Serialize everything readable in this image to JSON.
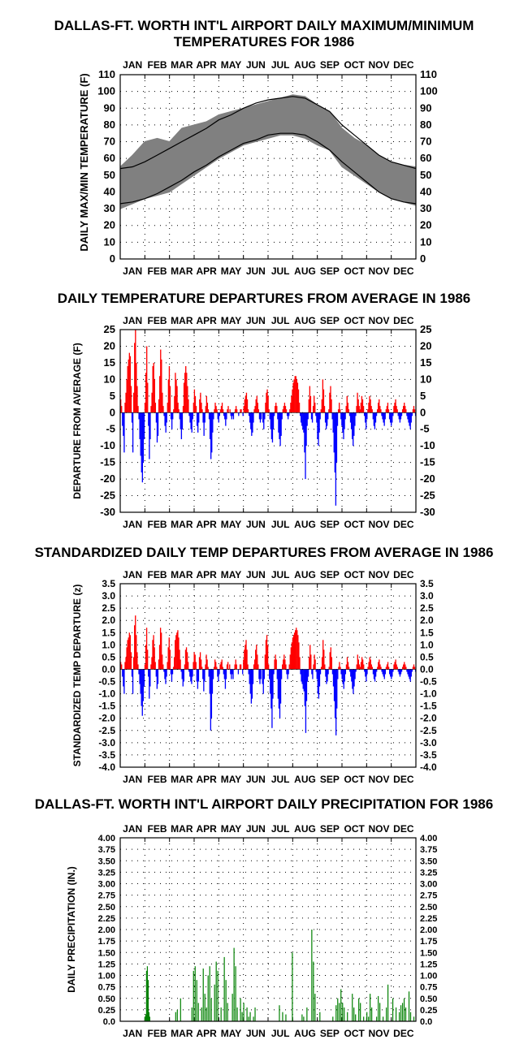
{
  "months": [
    "JAN",
    "FEB",
    "MAR",
    "APR",
    "MAY",
    "JUN",
    "JUL",
    "AUG",
    "SEP",
    "OCT",
    "NOV",
    "DEC"
  ],
  "colors": {
    "positive": "#ff0000",
    "negative": "#0000ff",
    "range": "#808080",
    "precip": "#008000",
    "normal_line": "#000000"
  },
  "chart_data": [
    {
      "type": "area",
      "title_lines": [
        "DALLAS-FT. WORTH INT'L AIRPORT DAILY MAXIMUM/MINIMUM",
        "TEMPERATURES FOR 1986"
      ],
      "ylabel": "DAILY MAX/MIN TEMPERATURE (F)",
      "ylim": [
        0,
        110
      ],
      "yticks": [
        "0",
        "10",
        "20",
        "30",
        "40",
        "50",
        "60",
        "70",
        "80",
        "90",
        "100",
        "110"
      ],
      "xlabel": "",
      "legend": "none",
      "grid": true,
      "x": [
        "Jan 1",
        "Jan 15",
        "Feb 1",
        "Feb 15",
        "Mar 1",
        "Mar 15",
        "Apr 1",
        "Apr 15",
        "May 1",
        "May 15",
        "Jun 1",
        "Jun 15",
        "Jul 1",
        "Jul 15",
        "Aug 1",
        "Aug 15",
        "Sep 1",
        "Sep 15",
        "Oct 1",
        "Oct 15",
        "Nov 1",
        "Nov 15",
        "Dec 1",
        "Dec 15",
        "Dec 31"
      ],
      "series": [
        {
          "role": "daily_max",
          "values": [
            55,
            62,
            70,
            72,
            70,
            78,
            80,
            82,
            86,
            88,
            90,
            92,
            94,
            96,
            98,
            97,
            92,
            88,
            78,
            72,
            68,
            62,
            58,
            56,
            55
          ]
        },
        {
          "role": "daily_min",
          "values": [
            30,
            33,
            36,
            38,
            40,
            45,
            50,
            55,
            60,
            64,
            68,
            70,
            72,
            74,
            74,
            72,
            68,
            65,
            55,
            50,
            45,
            40,
            36,
            34,
            32
          ]
        },
        {
          "role": "normal_high",
          "values": [
            54,
            55,
            58,
            62,
            66,
            70,
            74,
            78,
            83,
            86,
            90,
            93,
            95,
            96,
            97,
            96,
            92,
            88,
            80,
            74,
            68,
            62,
            58,
            56,
            54
          ]
        },
        {
          "role": "normal_low",
          "values": [
            33,
            34,
            36,
            39,
            43,
            47,
            52,
            56,
            61,
            65,
            69,
            71,
            74,
            75,
            75,
            74,
            70,
            65,
            58,
            52,
            46,
            40,
            36,
            34,
            33
          ]
        }
      ]
    },
    {
      "type": "bar",
      "title": "DAILY TEMPERATURE DEPARTURES FROM AVERAGE IN 1986",
      "ylabel": "DEPARTURE FROM AVERAGE (F)",
      "ylim": [
        -30,
        25
      ],
      "yticks": [
        "25",
        "20",
        "15",
        "10",
        "5",
        "0",
        "-5",
        "-10",
        "-15",
        "-20",
        "-25",
        "-30"
      ],
      "xlabel": "",
      "legend": "none",
      "grid": true,
      "values": [
        4,
        2,
        -4,
        -7,
        -12,
        3,
        6,
        10,
        14,
        16,
        18,
        17,
        8,
        -3,
        -12,
        6,
        21,
        25,
        15,
        8,
        2,
        -2,
        -8,
        -13,
        -18,
        -21,
        -15,
        -8,
        3,
        12,
        20,
        9,
        -4,
        -14,
        -8,
        2,
        6,
        14,
        15,
        10,
        3,
        -3,
        -9,
        -7,
        4,
        11,
        19,
        16,
        6,
        2,
        -1,
        -4,
        -6,
        -3,
        3,
        10,
        14,
        8,
        -2,
        -5,
        -2,
        1,
        5,
        12,
        10,
        8,
        3,
        1,
        -2,
        -5,
        -8,
        -5,
        2,
        9,
        12,
        14,
        12,
        8,
        4,
        -1,
        -3,
        -5,
        -6,
        -2,
        3,
        7,
        5,
        2,
        -4,
        -6,
        -3,
        4,
        6,
        3,
        1,
        -3,
        -7,
        -3,
        2,
        5,
        3,
        1,
        -2,
        -8,
        -14,
        -12,
        -6,
        -2,
        1,
        3,
        2,
        1,
        -2,
        -3,
        -1,
        1,
        2,
        3,
        1,
        -1,
        -2,
        -4,
        -2,
        1,
        2,
        0,
        1,
        -1,
        -2,
        -1,
        -2,
        0,
        1,
        2,
        1,
        0,
        -1,
        0,
        1,
        1,
        0,
        -1,
        2,
        4,
        5,
        6,
        4,
        1,
        -1,
        -3,
        -5,
        -7,
        -6,
        -3,
        1,
        2,
        4,
        5,
        3,
        1,
        -2,
        -3,
        -2,
        0,
        -3,
        -5,
        -2,
        3,
        6,
        7,
        5,
        1,
        -2,
        -5,
        -8,
        -9,
        -5,
        -1,
        2,
        3,
        2,
        -2,
        -6,
        -8,
        -10,
        -7,
        -2,
        1,
        2,
        3,
        2,
        1,
        -1,
        -2,
        -1,
        1,
        3,
        5,
        7,
        9,
        10,
        11,
        11,
        10,
        9,
        7,
        3,
        -1,
        -3,
        -4,
        -5,
        -6,
        -12,
        -20,
        -10,
        -4,
        -2,
        4,
        8,
        5,
        -2,
        -3,
        2,
        5,
        3,
        -1,
        -3,
        -8,
        -10,
        -6,
        -2,
        1,
        4,
        10,
        7,
        2,
        -3,
        -5,
        -4,
        -2,
        1,
        6,
        8,
        4,
        -2,
        -6,
        -12,
        -18,
        -28,
        -15,
        -4,
        1,
        3,
        1,
        -2,
        -4,
        -6,
        -8,
        -5,
        -2,
        2,
        5,
        3,
        1,
        -1,
        -3,
        -5,
        -8,
        -10,
        -7,
        -4,
        -1,
        2,
        6,
        4,
        2,
        1,
        3,
        5,
        4,
        2,
        -1,
        -3,
        -5,
        -2,
        1,
        3,
        5,
        4,
        2,
        1,
        -2,
        -4,
        -5,
        -3,
        -1,
        1,
        3,
        4,
        2,
        1,
        -1,
        -2,
        -3,
        -4,
        -2,
        1,
        2,
        3,
        1,
        -2,
        -3,
        -4,
        -3,
        -1,
        2,
        3,
        4,
        2,
        1,
        -1,
        -2,
        -3,
        -2,
        -1,
        1,
        2,
        3,
        2,
        1,
        -1,
        -2,
        -3,
        -4,
        -5,
        -3,
        -1,
        1,
        2,
        1,
        -1
      ]
    },
    {
      "type": "bar",
      "title": "STANDARDIZED DAILY TEMP DEPARTURES FROM AVERAGE IN 1986",
      "ylabel": "STANDARDIZED TEMP DEPARTURE (z)",
      "ylim": [
        -4.0,
        3.5
      ],
      "yticks": [
        "3.5",
        "3.0",
        "2.5",
        "2.0",
        "1.5",
        "1.0",
        "0.5",
        "0.0",
        "-0.5",
        "-1.0",
        "-1.5",
        "-2.0",
        "-2.5",
        "-3.0",
        "-3.5",
        "-4.0"
      ],
      "xlabel": "",
      "legend": "none",
      "grid": true,
      "values": [
        0.3,
        0.2,
        -0.3,
        -0.7,
        -1.0,
        0.3,
        0.5,
        0.9,
        1.2,
        1.3,
        1.5,
        1.4,
        0.7,
        -0.3,
        -1.0,
        0.5,
        1.8,
        2.2,
        1.4,
        0.7,
        0.2,
        -0.2,
        -0.6,
        -1.0,
        -1.5,
        -1.9,
        -1.3,
        -0.7,
        0.2,
        1.0,
        1.7,
        0.8,
        -0.3,
        -1.2,
        -0.7,
        0.2,
        0.5,
        1.2,
        1.4,
        0.9,
        0.3,
        -0.3,
        -0.8,
        -0.6,
        0.4,
        1.0,
        1.7,
        1.5,
        0.6,
        0.2,
        -0.1,
        -0.4,
        -0.6,
        -0.3,
        0.3,
        0.9,
        1.3,
        0.8,
        -0.2,
        -0.5,
        -0.2,
        0.1,
        0.5,
        1.2,
        1.4,
        1.5,
        1.6,
        1.3,
        0.8,
        0.4,
        -0.1,
        -0.4,
        -0.7,
        -0.5,
        0.2,
        0.8,
        0.9,
        0.7,
        0.3,
        -0.1,
        -0.3,
        -0.5,
        -0.6,
        -0.3,
        0.3,
        0.7,
        0.6,
        0.3,
        -0.5,
        -0.8,
        -0.5,
        0.5,
        0.7,
        0.4,
        0.1,
        -0.4,
        -0.9,
        -0.5,
        0.2,
        0.6,
        0.4,
        0.1,
        -0.3,
        -1.0,
        -2.5,
        -2.0,
        -1.0,
        -0.4,
        0.1,
        0.4,
        0.3,
        0.1,
        -0.3,
        -0.5,
        -0.2,
        0.2,
        0.3,
        0.4,
        0.1,
        -0.2,
        -0.4,
        -0.8,
        -0.4,
        0.2,
        0.3,
        0.0,
        0.2,
        -0.2,
        -0.4,
        -0.2,
        -0.4,
        0.0,
        0.2,
        0.4,
        0.2,
        0.0,
        -0.2,
        0.0,
        0.2,
        0.2,
        0.0,
        -0.2,
        0.4,
        0.8,
        1.0,
        1.2,
        0.8,
        0.2,
        -0.2,
        -0.6,
        -1.0,
        -1.4,
        -1.2,
        -0.6,
        0.2,
        0.4,
        0.8,
        1.0,
        0.6,
        0.2,
        -0.4,
        -0.6,
        -0.4,
        0.0,
        -0.6,
        -1.0,
        -0.4,
        0.6,
        1.2,
        1.4,
        1.0,
        0.2,
        -0.4,
        -1.0,
        -1.6,
        -2.4,
        -1.2,
        -0.2,
        0.4,
        0.6,
        0.4,
        -0.4,
        -1.2,
        -1.6,
        -2.0,
        -1.4,
        -0.4,
        0.2,
        0.4,
        0.6,
        0.4,
        0.2,
        -0.2,
        -0.4,
        -0.2,
        0.2,
        0.6,
        0.9,
        1.1,
        1.3,
        1.4,
        1.5,
        1.6,
        1.7,
        1.6,
        1.4,
        1.1,
        0.5,
        -0.2,
        -0.5,
        -0.6,
        -0.8,
        -0.9,
        -1.5,
        -2.6,
        -1.3,
        -0.5,
        -0.3,
        0.5,
        1.0,
        0.6,
        -0.2,
        -0.4,
        0.2,
        0.6,
        0.4,
        -0.1,
        -0.4,
        -1.0,
        -1.2,
        -0.7,
        -0.2,
        0.1,
        0.5,
        1.2,
        0.8,
        0.2,
        -0.3,
        -0.6,
        -0.5,
        -0.2,
        0.1,
        0.7,
        0.9,
        0.5,
        -0.2,
        -0.7,
        -1.3,
        -2.0,
        -2.7,
        -1.6,
        -0.4,
        0.1,
        0.3,
        0.1,
        -0.2,
        -0.4,
        -0.6,
        -0.8,
        -0.5,
        -0.2,
        0.2,
        0.5,
        0.3,
        0.1,
        -0.1,
        -0.3,
        -0.5,
        -0.8,
        -1.0,
        -0.7,
        -0.4,
        -0.1,
        0.2,
        0.6,
        0.4,
        0.2,
        0.1,
        0.3,
        0.5,
        0.4,
        0.2,
        -0.1,
        -0.3,
        -0.5,
        -0.2,
        0.1,
        0.3,
        0.5,
        0.4,
        0.2,
        0.1,
        -0.2,
        -0.4,
        -0.5,
        -0.3,
        -0.1,
        0.1,
        0.3,
        0.4,
        0.2,
        0.1,
        -0.1,
        -0.2,
        -0.3,
        -0.4,
        -0.2,
        0.1,
        0.2,
        0.3,
        0.1,
        -0.2,
        -0.3,
        -0.4,
        -0.3,
        -0.1,
        0.2,
        0.3,
        0.4,
        0.2,
        0.1,
        -0.1,
        -0.2,
        -0.3,
        -0.2,
        -0.1,
        0.1,
        0.2,
        0.3,
        0.2,
        0.1,
        -0.1,
        -0.2,
        -0.3,
        -0.4,
        -0.5,
        -0.3,
        -0.1,
        0.1,
        0.2,
        0.1,
        -0.1
      ]
    },
    {
      "type": "bar",
      "title": "DALLAS-FT. WORTH INT'L AIRPORT DAILY PRECIPITATION FOR 1986",
      "ylabel": "DAILY PRECIPITATION (IN.)",
      "ylim": [
        0,
        4.0
      ],
      "yticks": [
        "0.0",
        "0.25",
        "0.50",
        "0.75",
        "1.00",
        "1.25",
        "1.50",
        "1.75",
        "2.00",
        "2.25",
        "2.50",
        "2.75",
        "3.00",
        "3.25",
        "3.50",
        "3.75",
        "4.00"
      ],
      "xlabel": "",
      "legend": "none",
      "grid": true,
      "days": [
        30,
        31,
        32,
        33,
        34,
        35,
        36,
        68,
        70,
        74,
        88,
        90,
        92,
        94,
        96,
        100,
        102,
        104,
        106,
        108,
        110,
        112,
        116,
        118,
        120,
        124,
        128,
        130,
        132,
        138,
        140,
        142,
        144,
        148,
        150,
        152,
        156,
        158,
        160,
        164,
        166,
        196,
        200,
        204,
        212,
        224,
        226,
        230,
        236,
        238,
        240,
        246,
        262,
        266,
        268,
        270,
        272,
        274,
        276,
        280,
        286,
        288,
        290,
        294,
        296,
        300,
        304,
        306,
        308,
        310,
        316,
        318,
        320,
        324,
        328,
        330,
        336,
        340,
        344,
        346,
        348,
        350,
        352,
        356,
        358,
        362
      ],
      "values": [
        0.1,
        0.15,
        1.1,
        1.2,
        0.9,
        0.2,
        0.1,
        0.2,
        0.25,
        0.5,
        0.3,
        1.1,
        1.2,
        0.9,
        0.4,
        0.3,
        1.15,
        0.6,
        0.3,
        1.0,
        1.2,
        0.5,
        0.8,
        1.3,
        1.1,
        0.3,
        1.4,
        0.9,
        0.4,
        0.6,
        1.6,
        1.2,
        0.3,
        0.5,
        0.2,
        0.4,
        0.3,
        0.1,
        0.2,
        0.1,
        0.3,
        0.35,
        0.2,
        0.15,
        1.5,
        0.15,
        0.1,
        0.3,
        2.0,
        1.3,
        0.6,
        0.2,
        0.1,
        0.35,
        0.5,
        0.4,
        0.7,
        0.4,
        0.3,
        0.2,
        0.6,
        0.3,
        0.15,
        0.5,
        0.4,
        0.1,
        0.2,
        0.1,
        0.6,
        0.3,
        0.1,
        0.55,
        0.4,
        0.1,
        0.3,
        0.8,
        0.5,
        0.3,
        0.2,
        0.35,
        0.4,
        0.5,
        0.3,
        0.65,
        0.2,
        0.1
      ]
    }
  ]
}
